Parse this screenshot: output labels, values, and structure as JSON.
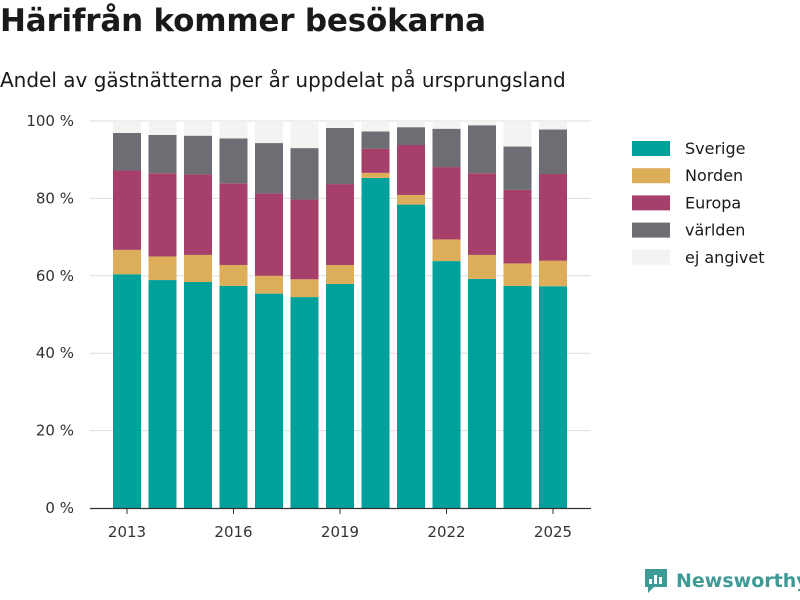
{
  "header": {
    "title": "Härifrån kommer besökarna",
    "subtitle": "Andel av gästnätterna per år uppdelat på ursprungsland"
  },
  "brand": {
    "name": "Newsworthy",
    "color": "#3d9a94"
  },
  "chart_data": {
    "type": "bar",
    "stacked": true,
    "x": [
      2013,
      2014,
      2015,
      2016,
      2017,
      2018,
      2019,
      2020,
      2021,
      2022,
      2023,
      2024,
      2025
    ],
    "x_tick_labels": [
      "2013",
      "2016",
      "2019",
      "2022",
      "2025"
    ],
    "x_ticks": [
      2013,
      2016,
      2019,
      2022,
      2025
    ],
    "y_ticks": [
      0,
      20,
      40,
      60,
      80,
      100
    ],
    "y_tick_labels": [
      "0 %",
      "20 %",
      "40 %",
      "60 %",
      "80 %",
      "100 %"
    ],
    "ylim": [
      0,
      100
    ],
    "grid": "horizontal",
    "legend_position": "right",
    "series": [
      {
        "name": "Sverige",
        "color": "#00a19a",
        "values": [
          60.4,
          58.9,
          58.4,
          57.4,
          55.4,
          54.5,
          57.9,
          85.3,
          78.4,
          63.8,
          59.2,
          57.4,
          57.3
        ]
      },
      {
        "name": "Norden",
        "color": "#dcae5a",
        "values": [
          6.3,
          6.1,
          7.0,
          5.4,
          4.6,
          4.6,
          4.9,
          1.3,
          2.5,
          5.6,
          6.2,
          5.8,
          6.6
        ]
      },
      {
        "name": "Europa",
        "color": "#a63f6a",
        "values": [
          20.5,
          21.5,
          20.8,
          21.1,
          21.3,
          20.6,
          20.9,
          6.2,
          12.9,
          18.7,
          21.1,
          19.0,
          22.4
        ]
      },
      {
        "name": "världen",
        "color": "#6e6d73",
        "values": [
          9.7,
          9.9,
          10.0,
          11.6,
          13.0,
          13.3,
          14.5,
          4.5,
          4.6,
          9.9,
          12.4,
          11.2,
          11.5
        ]
      },
      {
        "name": "ej angivet",
        "color": "#f4f3f2",
        "values": [
          3.1,
          3.6,
          3.8,
          4.5,
          5.7,
          7.0,
          1.8,
          2.7,
          1.6,
          2.0,
          1.1,
          6.6,
          2.2
        ]
      }
    ]
  }
}
